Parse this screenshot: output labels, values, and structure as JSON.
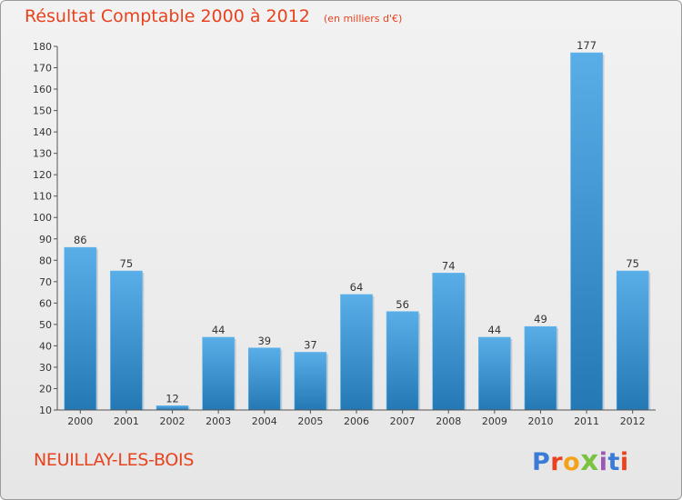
{
  "header": {
    "title": "Résultat Comptable 2000 à 2012",
    "subtitle": "(en milliers d'€)"
  },
  "footer": {
    "city": "NEUILLAY-LES-BOIS",
    "brand": "Proxiti",
    "brand_colors": [
      "#3a7bd5",
      "#e8421e",
      "#f2a31b",
      "#7cc242",
      "#9b59b6",
      "#3a7bd5",
      "#e8421e"
    ]
  },
  "colors": {
    "bar_top": "#5aaee8",
    "bar_bottom": "#2478b4",
    "title": "#e8421e"
  },
  "chart_data": {
    "type": "bar",
    "categories": [
      "2000",
      "2001",
      "2002",
      "2003",
      "2004",
      "2005",
      "2006",
      "2007",
      "2008",
      "2009",
      "2010",
      "2011",
      "2012"
    ],
    "values": [
      86,
      75,
      12,
      44,
      39,
      37,
      64,
      56,
      74,
      44,
      49,
      177,
      75
    ],
    "title": "Résultat Comptable 2000 à 2012",
    "xlabel": "",
    "ylabel": "",
    "ylim": [
      10,
      180
    ],
    "yticks": [
      10,
      20,
      30,
      40,
      50,
      60,
      70,
      80,
      90,
      100,
      110,
      120,
      130,
      140,
      150,
      160,
      170,
      180
    ],
    "grid": false,
    "legend": "none"
  }
}
